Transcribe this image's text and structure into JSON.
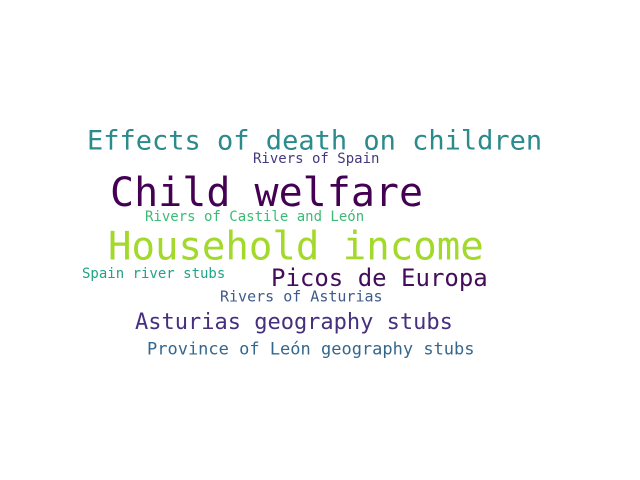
{
  "words": [
    {
      "text": "Effects of death on children",
      "color": "#2a8a8c"
    },
    {
      "text": "Rivers of Spain",
      "color": "#433a7e"
    },
    {
      "text": "Child welfare",
      "color": "#440154"
    },
    {
      "text": "Rivers of Castile and León",
      "color": "#3bbb75"
    },
    {
      "text": "Household income",
      "color": "#a2d92a"
    },
    {
      "text": "Spain river stubs",
      "color": "#20a386"
    },
    {
      "text": "Picos de Europa",
      "color": "#440d5a"
    },
    {
      "text": "Rivers of Asturias",
      "color": "#3e5b8c"
    },
    {
      "text": "Asturias geography stubs",
      "color": "#46307e"
    },
    {
      "text": "Province of León geography stubs",
      "color": "#35678d"
    }
  ]
}
